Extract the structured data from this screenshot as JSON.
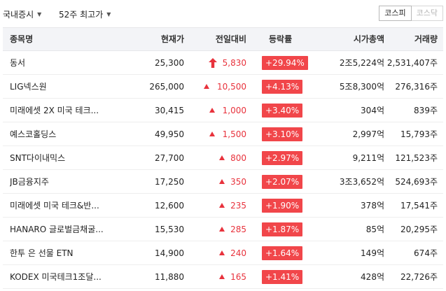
{
  "filters": {
    "market": "국내증시",
    "period": "52주 최고가"
  },
  "market_toggle": {
    "kospi": "코스피",
    "kosdaq": "코스닥"
  },
  "columns": [
    "종목명",
    "현재가",
    "전일대비",
    "등락률",
    "시가총액",
    "거래량"
  ],
  "rows": [
    {
      "name": "동서",
      "price": "25,300",
      "change": "5,830",
      "change_type": "upper-limit",
      "rate": "+29.94%",
      "cap": "2조5,224억",
      "volume": "2,531,407주"
    },
    {
      "name": "LIG넥스원",
      "price": "265,000",
      "change": "10,500",
      "change_type": "up",
      "rate": "+4.13%",
      "cap": "5조8,300억",
      "volume": "276,316주"
    },
    {
      "name": "미래에셋 2X 미국 테크...",
      "price": "30,415",
      "change": "1,000",
      "change_type": "up",
      "rate": "+3.40%",
      "cap": "304억",
      "volume": "839주"
    },
    {
      "name": "예스코홀딩스",
      "price": "49,950",
      "change": "1,500",
      "change_type": "up",
      "rate": "+3.10%",
      "cap": "2,997억",
      "volume": "15,793주"
    },
    {
      "name": "SNT다이내믹스",
      "price": "27,700",
      "change": "800",
      "change_type": "up",
      "rate": "+2.97%",
      "cap": "9,211억",
      "volume": "121,523주"
    },
    {
      "name": "JB금융지주",
      "price": "17,250",
      "change": "350",
      "change_type": "up",
      "rate": "+2.07%",
      "cap": "3조3,652억",
      "volume": "524,693주"
    },
    {
      "name": "미래에셋 미국 테크&반...",
      "price": "12,600",
      "change": "235",
      "change_type": "up",
      "rate": "+1.90%",
      "cap": "378억",
      "volume": "17,541주"
    },
    {
      "name": "HANARO 글로벌금채굴...",
      "price": "15,530",
      "change": "285",
      "change_type": "up",
      "rate": "+1.87%",
      "cap": "85억",
      "volume": "20,295주"
    },
    {
      "name": "한투 은 선물 ETN",
      "price": "14,900",
      "change": "240",
      "change_type": "up",
      "rate": "+1.64%",
      "cap": "149억",
      "volume": "674주"
    },
    {
      "name": "KODEX 미국테크1조달...",
      "price": "11,880",
      "change": "165",
      "change_type": "up",
      "rate": "+1.41%",
      "cap": "428억",
      "volume": "22,726주"
    }
  ],
  "colors": {
    "up": "#e8323c",
    "rate_badge_bg": "#f1464a",
    "header_bg": "#f3f4f7"
  }
}
